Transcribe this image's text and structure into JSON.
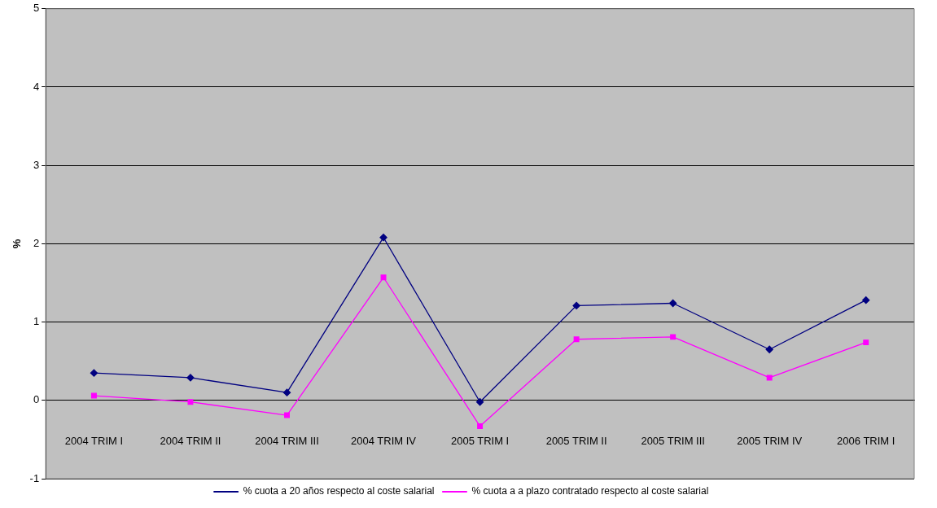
{
  "chart_data": {
    "type": "line",
    "ylabel": "%",
    "categories": [
      "2004 TRIM I",
      "2004 TRIM II",
      "2004 TRIM III",
      "2004 TRIM IV",
      "2005 TRIM I",
      "2005 TRIM II",
      "2005 TRIM III",
      "2005 TRIM IV",
      "2006 TRIM I"
    ],
    "series": [
      {
        "name": "% cuota a 20 años respecto al coste salarial",
        "color": "#000080",
        "marker": "diamond",
        "values": [
          0.35,
          0.29,
          0.1,
          2.08,
          -0.02,
          1.21,
          1.24,
          0.65,
          1.28
        ]
      },
      {
        "name": "% cuota a a plazo contratado respecto al coste salarial",
        "color": "#ff00ff",
        "marker": "square",
        "values": [
          0.06,
          -0.02,
          -0.19,
          1.57,
          -0.33,
          0.78,
          0.81,
          0.29,
          0.74
        ]
      }
    ],
    "ylim": [
      -1,
      5
    ],
    "yticks": [
      -1,
      0,
      1,
      2,
      3,
      4,
      5
    ],
    "grid": "y",
    "legend": "bottom",
    "line_style": "solid"
  }
}
